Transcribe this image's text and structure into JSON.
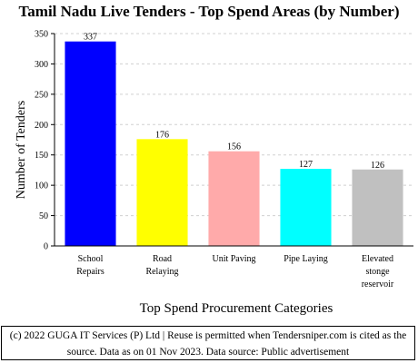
{
  "chart_data": {
    "type": "bar",
    "title": "Tamil Nadu Live Tenders - Top Spend Areas (by Number)",
    "xlabel": "Top Spend Procurement Categories",
    "ylabel": "Number of Tenders",
    "ylim": [
      0,
      350
    ],
    "yticks": [
      0,
      50,
      100,
      150,
      200,
      250,
      300,
      350
    ],
    "grid": true,
    "categories": [
      [
        "School",
        "Repairs"
      ],
      [
        "Road",
        "Relaying"
      ],
      [
        "Unit Paving"
      ],
      [
        "Pipe Laying"
      ],
      [
        "Elevated",
        "stonge",
        "reservoir"
      ]
    ],
    "values": [
      337,
      176,
      156,
      127,
      126
    ],
    "colors": [
      "#0000ff",
      "#ffff00",
      "#ffaaaa",
      "#00ffff",
      "#c0c0c0"
    ]
  },
  "footer": {
    "line1": "(c) 2022 GUGA IT Services (P) Ltd | Reuse is permitted when Tendersniper.com is cited as the",
    "line2": "source. Data as on 01 Nov 2023. Data source: Public advertisement"
  }
}
